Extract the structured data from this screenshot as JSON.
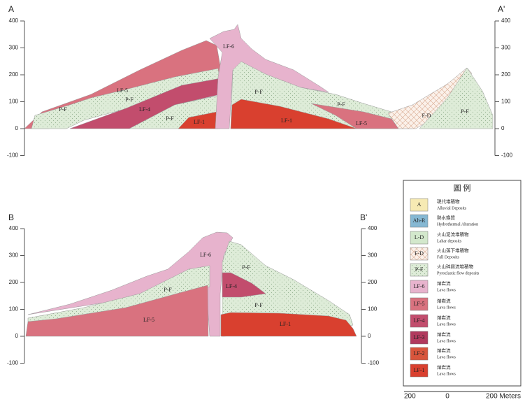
{
  "sections": [
    {
      "start_label": "A",
      "end_label": "A'",
      "yticks": [
        400,
        300,
        200,
        100,
        0,
        -100
      ],
      "units": [
        "P-F",
        "LF-5",
        "P-F",
        "LF-4",
        "P-F",
        "LF-1",
        "LF-6",
        "P-F",
        "LF-1",
        "P-F",
        "LF-5",
        "F-D",
        "P-F"
      ]
    },
    {
      "start_label": "B",
      "end_label": "B'",
      "yticks": [
        400,
        300,
        200,
        100,
        0,
        -100
      ],
      "units": [
        "LF-6",
        "P-F",
        "LF-4",
        "P-F",
        "LF-5",
        "P-F",
        "LF-1"
      ]
    }
  ],
  "legend": {
    "title": "圖 例",
    "items": [
      {
        "code": "A",
        "name_zh": "現代堆積物",
        "name_en": "Alluvial Deposits"
      },
      {
        "code": "Ah-R",
        "name_zh": "熱水換質",
        "name_en": "Hydrothermal Alteration"
      },
      {
        "code": "L-D",
        "name_zh": "火山泥流堆積物",
        "name_en": "Lahar deposits"
      },
      {
        "code": "F-D",
        "name_zh": "火山落下堆積物",
        "name_en": "Fall Deposits"
      },
      {
        "code": "P-F",
        "name_zh": "火山碎屑流堆積物",
        "name_en": "Pyroclastic flow deposits"
      },
      {
        "code": "LF-6",
        "name_zh": "熔岩流",
        "name_en": "Lava flows"
      },
      {
        "code": "LF-5",
        "name_zh": "熔岩流",
        "name_en": "Lava flows"
      },
      {
        "code": "LF-4",
        "name_zh": "熔岩流",
        "name_en": "Lava flows"
      },
      {
        "code": "LF-3",
        "name_zh": "熔岩流",
        "name_en": "Lava flows"
      },
      {
        "code": "LF-2",
        "name_zh": "熔岩流",
        "name_en": "Lava flows"
      },
      {
        "code": "LF-1",
        "name_zh": "熔岩流",
        "name_en": "Lava flows"
      }
    ]
  },
  "scale_bar": {
    "labels": [
      "200",
      "0",
      "200 Meters"
    ]
  }
}
